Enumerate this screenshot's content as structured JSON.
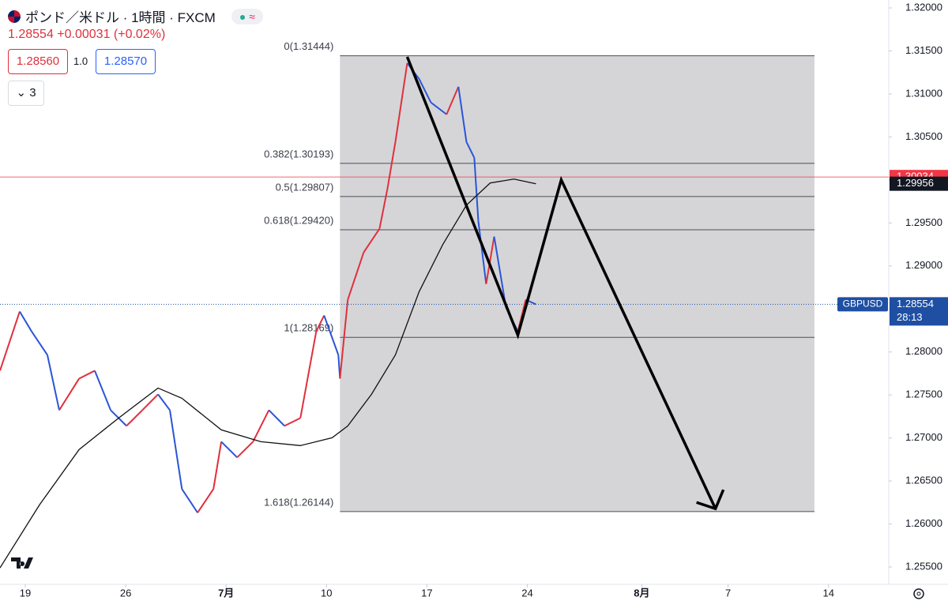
{
  "header": {
    "title": "ポンド／米ドル · 1時間 · FXCM",
    "quote": "1.28554 +0.00031 (+0.02%)",
    "sell": "1.28560",
    "size": "1.0",
    "buy": "1.28570",
    "indicators": "3"
  },
  "chart_data": {
    "type": "line",
    "xlim": [
      -1.26,
      43
    ],
    "ylim": [
      1.25298,
      1.32092
    ],
    "xticks": [
      {
        "value": 0,
        "label": "19"
      },
      {
        "value": 5,
        "label": "26"
      },
      {
        "value": 10,
        "label": "7月"
      },
      {
        "value": 15,
        "label": "10"
      },
      {
        "value": 20,
        "label": "17"
      },
      {
        "value": 25,
        "label": "24"
      },
      {
        "value": 30.7,
        "label": "8月"
      },
      {
        "value": 35,
        "label": "7"
      },
      {
        "value": 40,
        "label": "14"
      }
    ],
    "yticks": [
      {
        "value": 1.32,
        "label": "1.32000"
      },
      {
        "value": 1.315,
        "label": "1.31500"
      },
      {
        "value": 1.31,
        "label": "1.31000"
      },
      {
        "value": 1.305,
        "label": "1.30500"
      },
      {
        "value": 1.3,
        "label": "1.30000"
      },
      {
        "value": 1.295,
        "label": "1.29500"
      },
      {
        "value": 1.29,
        "label": "1.29000"
      },
      {
        "value": 1.285,
        "label": "1.28500"
      },
      {
        "value": 1.28,
        "label": "1.28000"
      },
      {
        "value": 1.275,
        "label": "1.27500"
      },
      {
        "value": 1.27,
        "label": "1.27000"
      },
      {
        "value": 1.265,
        "label": "1.26500"
      },
      {
        "value": 1.26,
        "label": "1.26000"
      },
      {
        "value": 1.255,
        "label": "1.25500"
      }
    ],
    "series": [
      {
        "name": "GBPUSD",
        "up_color": "#e0303c",
        "down_color": "#2b55d6",
        "x": [
          -1.26,
          -0.28,
          0.31,
          1.1,
          1.69,
          2.68,
          3.46,
          4.25,
          5.04,
          5.83,
          6.61,
          7.2,
          7.8,
          8.58,
          9.37,
          9.76,
          10.55,
          11.34,
          12.13,
          12.91,
          13.7,
          14.49,
          14.88,
          15.59,
          15.67,
          16.06,
          16.85,
          17.64,
          18.03,
          18.43,
          19.02,
          19.61,
          20.2,
          20.98,
          21.57,
          21.97,
          22.36,
          22.56,
          22.95,
          23.35,
          23.94,
          24.53,
          24.92,
          25.43
        ],
        "values": [
          1.27782,
          1.2847,
          1.2824,
          1.27965,
          1.27323,
          1.2769,
          1.27782,
          1.27323,
          1.2714,
          1.27323,
          1.27507,
          1.27323,
          1.26406,
          1.26131,
          1.26406,
          1.26956,
          1.26773,
          1.26956,
          1.27323,
          1.2714,
          1.27232,
          1.2824,
          1.28424,
          1.27965,
          1.2769,
          1.28607,
          1.29157,
          1.29432,
          1.29891,
          1.30441,
          1.31358,
          1.31175,
          1.309,
          1.30762,
          1.31083,
          1.30441,
          1.30258,
          1.29524,
          1.2879,
          1.29341,
          1.28515,
          1.2824,
          1.28607,
          1.28554
        ]
      },
      {
        "color": "#111111",
        "x": [
          -1.26,
          0.71,
          2.68,
          4.65,
          6.61,
          7.8,
          9.76,
          11.73,
          13.7,
          15.28,
          16.06,
          17.24,
          18.43,
          19.61,
          20.79,
          21.97,
          23.15,
          24.33,
          25.43
        ],
        "values": [
          1.25489,
          1.26223,
          1.26865,
          1.27232,
          1.2758,
          1.27461,
          1.27094,
          1.26956,
          1.26911,
          1.27002,
          1.2714,
          1.27507,
          1.27965,
          1.28699,
          1.29249,
          1.29707,
          1.29964,
          1.3001,
          1.29955
        ]
      }
    ],
    "fib": {
      "x": [
        15.67,
        39.3
      ],
      "fill": "#d5d5d8",
      "levels": [
        {
          "value": 1.31444,
          "label": "0(1.31444)"
        },
        {
          "value": 1.30193,
          "label": "0.382(1.30193)"
        },
        {
          "value": 1.29807,
          "label": "0.5(1.29807)"
        },
        {
          "value": 1.2942,
          "label": "0.618(1.29420)"
        },
        {
          "value": 1.28169,
          "label": "1(1.28169)"
        },
        {
          "value": 1.26144,
          "label": "1.618(1.26144)"
        }
      ]
    },
    "drawing": {
      "x": [
        19.02,
        24.53,
        26.69,
        34.37
      ],
      "values": [
        1.31431,
        1.28195,
        1.30001,
        1.26177
      ]
    },
    "tags": [
      {
        "value": 1.30034,
        "color": "#f23645"
      },
      {
        "value": 1.29956,
        "color": "#131722"
      },
      {
        "value": 1.28554,
        "color": "#1e4fa3",
        "label": "GBPUSD",
        "countdown": "28:13"
      }
    ]
  }
}
